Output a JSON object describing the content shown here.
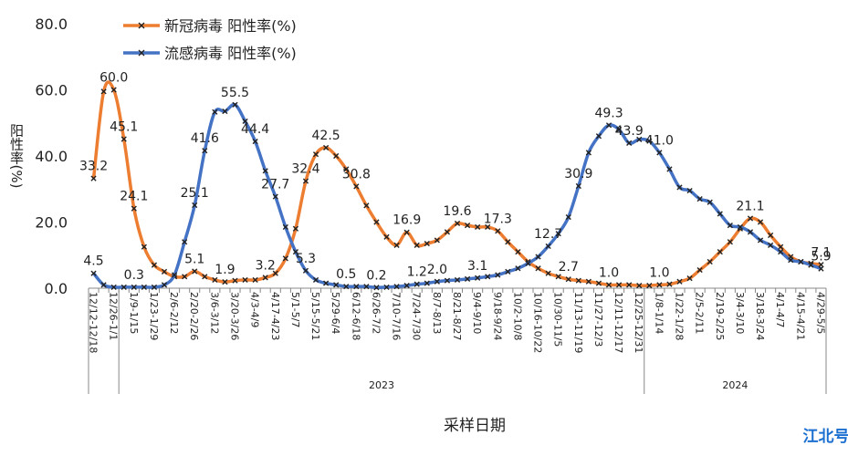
{
  "chart_data": {
    "type": "line",
    "y_label": "阳性率(%)",
    "x_label": "采样日期",
    "years": [
      "2023",
      "2024"
    ],
    "watermark": "江北号",
    "categories": [
      "12/12-12/18",
      null,
      "12/26-1/1",
      null,
      "1/9-1/15",
      null,
      "1/23-1/29",
      null,
      "2/6-2/12",
      null,
      "2/20-2/26",
      null,
      "3/6-3/12",
      null,
      "3/20-3/26",
      null,
      "4/3-4/9",
      null,
      "4/17-4/23",
      null,
      "5/1-5/7",
      null,
      "5/15-5/21",
      null,
      "5/29-6/4",
      null,
      "6/12-6/18",
      null,
      "6/26-7/2",
      null,
      "7/10-7/16",
      null,
      "7/24-7/30",
      null,
      "8/7-8/13",
      null,
      "8/21-8/27",
      null,
      "9/4-9/10",
      null,
      "9/18-9/24",
      null,
      "10/2-10/8",
      null,
      "10/16-10/22",
      null,
      "10/30-11/5",
      null,
      "11/13-11/19",
      null,
      "11/27-12/3",
      null,
      "12/11-12/17",
      null,
      "12/25-12/31",
      null,
      "1/8-1/14",
      null,
      "1/22-1/28",
      null,
      "2/5-2/11",
      null,
      "2/19-2/25",
      null,
      "3/4-3/10",
      null,
      "3/18-3/24",
      null,
      "4/1-4/7",
      null,
      "4/15-4/21",
      null,
      "4/29-5/5"
    ],
    "series": [
      {
        "name": "新冠病毒 阳性率(%)",
        "color": "#ED7D31",
        "values": [
          33.2,
          59.5,
          60.0,
          45.1,
          24.1,
          12.5,
          7,
          5,
          3.5,
          3.5,
          5.1,
          3.5,
          2.5,
          1.9,
          2.3,
          2.5,
          2.5,
          3.2,
          4.5,
          9,
          18,
          32.4,
          40.5,
          42.5,
          40,
          36,
          30.8,
          25,
          20,
          15.5,
          13,
          16.9,
          13,
          13.5,
          14.5,
          17,
          19.6,
          19,
          18.5,
          18.5,
          17.3,
          14,
          11,
          8,
          6,
          4.5,
          3.5,
          2.7,
          2.3,
          2,
          1.5,
          1.0,
          1.0,
          1.0,
          0.8,
          0.8,
          1.0,
          1.2,
          2,
          3,
          5.5,
          8,
          11,
          14,
          18,
          21.1,
          20,
          16,
          12.5,
          9.5,
          8,
          7.5,
          7.1
        ],
        "value_labels": [
          "33.2",
          null,
          "60.0",
          "45.1",
          "24.1",
          null,
          null,
          null,
          null,
          null,
          "5.1",
          null,
          null,
          "1.9",
          null,
          null,
          null,
          "3.2",
          null,
          null,
          null,
          "32.4",
          null,
          "42.5",
          null,
          null,
          "30.8",
          null,
          null,
          null,
          null,
          "16.9",
          null,
          null,
          null,
          null,
          "19.6",
          null,
          null,
          null,
          "17.3",
          null,
          null,
          null,
          null,
          null,
          null,
          "2.7",
          null,
          null,
          null,
          "1.0",
          null,
          null,
          null,
          null,
          "1.0",
          null,
          null,
          null,
          null,
          null,
          null,
          null,
          null,
          "21.1",
          null,
          null,
          null,
          null,
          null,
          null,
          "7.1"
        ]
      },
      {
        "name": "流感病毒 阳性率(%)",
        "color": "#4472C4",
        "values": [
          4.5,
          1,
          0.3,
          0.3,
          0.3,
          0.3,
          0.3,
          1,
          4,
          14,
          25.1,
          41.6,
          53.3,
          53.5,
          55.5,
          50.5,
          44.4,
          35.5,
          27.7,
          18.5,
          11,
          5.3,
          2.5,
          1.5,
          1,
          0.5,
          0.5,
          0.5,
          0.2,
          0.3,
          0.5,
          0.8,
          1.2,
          1.5,
          2.0,
          2.3,
          2.5,
          2.8,
          3.1,
          3.5,
          4,
          5,
          6,
          7.5,
          9.5,
          12.7,
          16.5,
          21.5,
          30.9,
          41,
          46,
          49.3,
          48,
          43.9,
          45,
          44.5,
          41.0,
          36,
          30.5,
          29.5,
          27,
          26,
          22.5,
          19,
          18.5,
          17,
          14.5,
          13,
          11,
          8.5,
          8,
          7,
          5.9
        ],
        "value_labels": [
          "4.5",
          null,
          null,
          null,
          "0.3",
          null,
          null,
          null,
          null,
          null,
          "25.1",
          "41.6",
          null,
          null,
          "55.5",
          null,
          "44.4",
          null,
          "27.7",
          null,
          null,
          "5.3",
          null,
          null,
          null,
          "0.5",
          null,
          null,
          "0.2",
          null,
          null,
          null,
          "1.2",
          null,
          "2.0",
          null,
          null,
          null,
          "3.1",
          null,
          null,
          null,
          null,
          null,
          null,
          "12.7",
          null,
          null,
          "30.9",
          null,
          null,
          "49.3",
          null,
          "43.9",
          null,
          null,
          "41.0",
          null,
          null,
          null,
          null,
          null,
          null,
          null,
          null,
          null,
          null,
          null,
          null,
          null,
          null,
          null,
          "5.9"
        ]
      }
    ],
    "ylim": [
      0,
      80
    ],
    "yticks": [
      {
        "value": 0,
        "label": "0.0"
      },
      {
        "value": 20,
        "label": "20.0"
      },
      {
        "value": 40,
        "label": "40.0"
      },
      {
        "value": 60,
        "label": "60.0"
      },
      {
        "value": 80,
        "label": "80.0"
      }
    ],
    "grid": false,
    "legend": "top"
  }
}
